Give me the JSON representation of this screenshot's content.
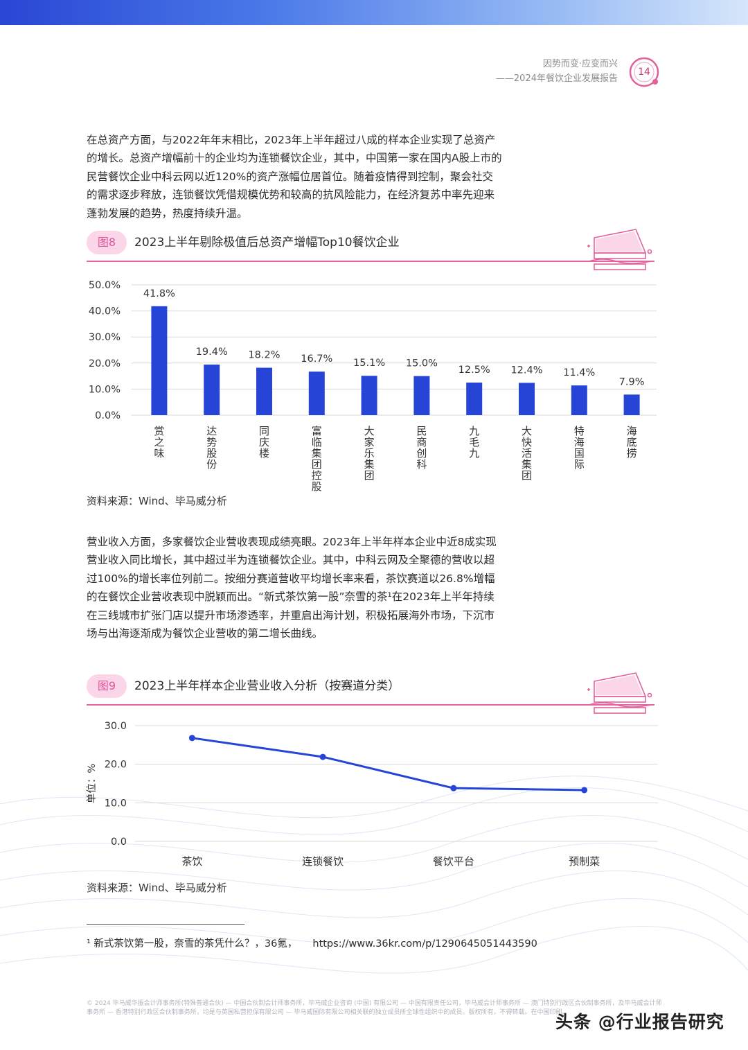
{
  "header": {
    "line1": "因势而变·应变而兴",
    "line2": "——2024年餐饮企业发展报告",
    "page_number": "14"
  },
  "paragraph1": "在总资产方面，与2022年年末相比，2023年上半年超过八成的样本企业实现了总资产的增长。总资产增幅前十的企业均为连锁餐饮企业，其中，中国第一家在国内A股上市的民营餐饮企业中科云网以近120%的资产涨幅位居首位。随着疫情得到控制，聚会社交的需求逐步释放，连锁餐饮凭借规模优势和较高的抗风险能力，在经济复苏中率先迎来蓬勃发展的趋势，热度持续升温。",
  "figure8": {
    "tag": "图8",
    "title": "2023上半年剔除极值后总资产增幅Top10餐饮企业",
    "source": "资料来源：Wind、毕马威分析"
  },
  "paragraph2": "营业收入方面，多家餐饮企业营收表现成绩亮眼。2023年上半年样本企业中近8成实现营业收入同比增长，其中超过半为连锁餐饮企业。其中，中科云网及全聚德的营收以超过100%的增长率位列前二。按细分赛道营收平均增长率来看，茶饮赛道以26.8%增幅的在餐饮企业营收表现中脱颖而出。“新式茶饮第一股”奈雪的茶¹在2023年上半年持续在三线城市扩张门店以提升市场渗透率，并重启出海计划，积极拓展海外市场，下沉市场与出海逐渐成为餐饮企业营收的第二增长曲线。",
  "figure9": {
    "tag": "图9",
    "title": "2023上半年样本企业营业收入分析（按赛道分类）",
    "source": "资料来源：Wind、毕马威分析"
  },
  "footnote": {
    "text": "¹ 新式茶饮第一股，奈雪的茶凭什么？，36氪，",
    "url": "https://www.36kr.com/p/1290645051443590"
  },
  "legal": "© 2024 毕马威华振会计师事务所(特殊普通合伙) — 中国合伙制会计师事务所，毕马威企业咨询 (中国) 有限公司 — 中国有限责任公司，毕马威会计师事务所 — 澳门特别行政区合伙制事务所，及毕马威会计师事务所 — 香港特别行政区合伙制事务所，均是与英国私营担保有限公司 — 毕马威国际有限公司相关联的独立成员所全球性组织中的成员。版权所有，不得转载。在中国印刷。",
  "watermark": "头条 @行业报告研究",
  "colors": {
    "bar": "#2645d6",
    "accent": "#e7649e",
    "pill_bg": "#fbd6e8"
  },
  "chart_data": [
    {
      "type": "bar",
      "categories": [
        "赏之味",
        "达势股份",
        "同庆楼",
        "富临集团控股",
        "大家乐集团",
        "民商创科",
        "九毛九",
        "大快活集团",
        "特海国际",
        "海底捞"
      ],
      "values": [
        41.8,
        19.4,
        18.2,
        16.7,
        15.1,
        15.0,
        12.5,
        12.4,
        11.4,
        7.9
      ],
      "value_labels": [
        "41.8%",
        "19.4%",
        "18.2%",
        "16.7%",
        "15.1%",
        "15.0%",
        "12.5%",
        "12.4%",
        "11.4%",
        "7.9%"
      ],
      "ytick_labels": [
        "50.0%",
        "40.0%",
        "30.0%",
        "20.0%",
        "10.0%",
        "0.0%"
      ],
      "ylim": [
        0,
        50
      ],
      "grid": true
    },
    {
      "type": "line",
      "categories": [
        "茶饮",
        "连锁餐饮",
        "餐饮平台",
        "预制菜"
      ],
      "values": [
        26.8,
        21.9,
        13.8,
        13.3
      ],
      "ytick_labels": [
        "30.0",
        "20.0",
        "10.0",
        "0.0"
      ],
      "ylabel": "单位：%",
      "ylim": [
        0,
        30
      ],
      "grid": true
    }
  ]
}
